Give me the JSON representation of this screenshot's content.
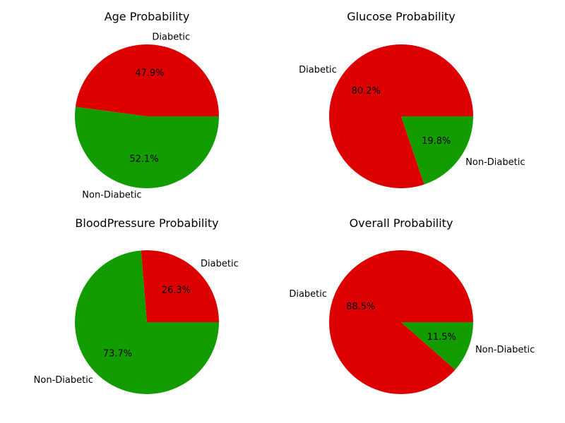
{
  "colors": {
    "diabetic": "#dd0000",
    "non_diabetic": "#129c00"
  },
  "chart_data": [
    {
      "type": "pie",
      "title": "Age Probability",
      "labels": [
        "Diabetic",
        "Non-Diabetic"
      ],
      "values": [
        47.9,
        52.1
      ],
      "autopct": [
        "47.9%",
        "52.1%"
      ]
    },
    {
      "type": "pie",
      "title": "Glucose Probability",
      "labels": [
        "Diabetic",
        "Non-Diabetic"
      ],
      "values": [
        80.2,
        19.8
      ],
      "autopct": [
        "80.2%",
        "19.8%"
      ]
    },
    {
      "type": "pie",
      "title": "BloodPressure Probability",
      "labels": [
        "Diabetic",
        "Non-Diabetic"
      ],
      "values": [
        26.3,
        73.7
      ],
      "autopct": [
        "26.3%",
        "73.7%"
      ]
    },
    {
      "type": "pie",
      "title": "Overall Probability",
      "labels": [
        "Diabetic",
        "Non-Diabetic"
      ],
      "values": [
        88.5,
        11.5
      ],
      "autopct": [
        "88.5%",
        "11.5%"
      ]
    }
  ]
}
